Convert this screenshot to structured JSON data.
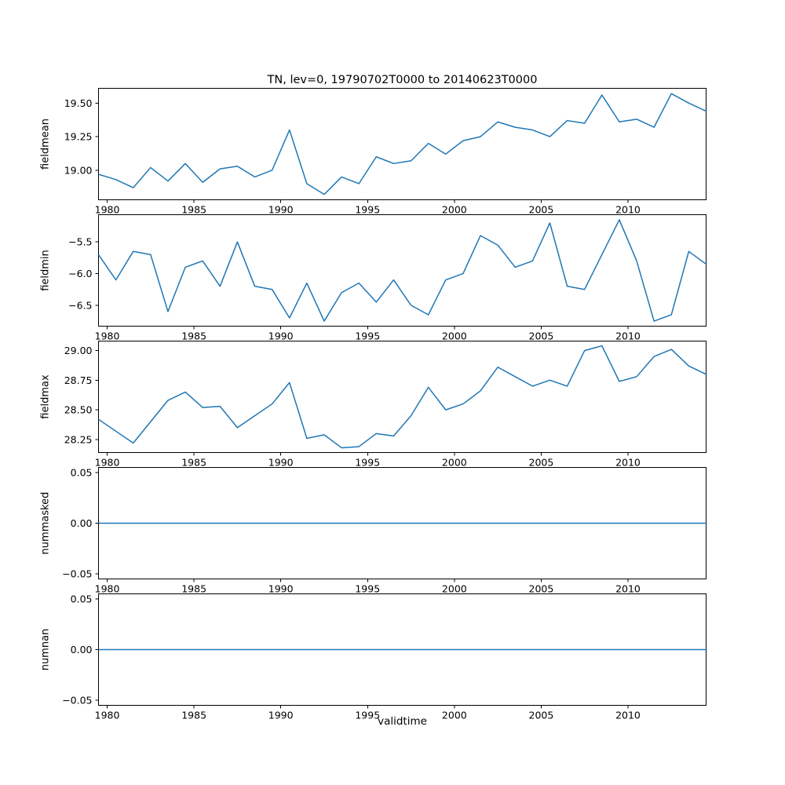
{
  "chart_data": {
    "type": "line",
    "title": "TN, lev=0, 19790702T0000 to 20140623T0000",
    "xlabel": "validtime",
    "line_color": "#1f77b4",
    "background_color": "#ffffff",
    "layout": "5 stacked subplots sharing the x axis, legend off, grid off",
    "x": [
      1979,
      1980,
      1981,
      1982,
      1983,
      1984,
      1985,
      1986,
      1987,
      1988,
      1989,
      1990,
      1991,
      1992,
      1993,
      1994,
      1995,
      1996,
      1997,
      1998,
      1999,
      2000,
      2001,
      2002,
      2003,
      2004,
      2005,
      2006,
      2007,
      2008,
      2009,
      2010,
      2011,
      2012,
      2013,
      2014
    ],
    "xlim": [
      1979.5,
      2014.5
    ],
    "xticks": [
      {
        "value": 1980,
        "label": "1980"
      },
      {
        "value": 1985,
        "label": "1985"
      },
      {
        "value": 1990,
        "label": "1990"
      },
      {
        "value": 1995,
        "label": "1995"
      },
      {
        "value": 2000,
        "label": "2000"
      },
      {
        "value": 2005,
        "label": "2005"
      },
      {
        "value": 2010,
        "label": "2010"
      }
    ],
    "series": [
      {
        "name": "fieldmean",
        "values": [
          18.97,
          18.93,
          18.87,
          19.02,
          18.92,
          19.05,
          18.91,
          19.01,
          19.03,
          18.95,
          19.0,
          19.3,
          18.9,
          18.82,
          18.95,
          18.9,
          19.1,
          19.05,
          19.07,
          19.2,
          19.12,
          19.22,
          19.25,
          19.36,
          19.32,
          19.3,
          19.25,
          19.37,
          19.35,
          19.56,
          19.36,
          19.38,
          19.32,
          19.57,
          19.5,
          19.44
        ],
        "ylim": [
          18.78,
          19.61
        ],
        "yticks": [
          {
            "value": 19.0,
            "label": "19.00"
          },
          {
            "value": 19.25,
            "label": "19.25"
          },
          {
            "value": 19.5,
            "label": "19.50"
          }
        ]
      },
      {
        "name": "fieldmin",
        "values": [
          -5.7,
          -6.1,
          -5.65,
          -5.7,
          -6.6,
          -5.9,
          -5.8,
          -6.2,
          -5.5,
          -6.2,
          -6.25,
          -6.7,
          -6.15,
          -6.75,
          -6.3,
          -6.15,
          -6.45,
          -6.1,
          -6.5,
          -6.65,
          -6.1,
          -6.0,
          -5.4,
          -5.55,
          -5.9,
          -5.8,
          -5.2,
          -6.2,
          -6.25,
          -5.7,
          -5.15,
          -5.8,
          -6.75,
          -6.65,
          -5.65,
          -5.85
        ],
        "ylim": [
          -6.83,
          -5.07
        ],
        "yticks": [
          {
            "value": -5.5,
            "label": "−5.5"
          },
          {
            "value": -6.0,
            "label": "−6.0"
          },
          {
            "value": -6.5,
            "label": "−6.5"
          }
        ]
      },
      {
        "name": "fieldmax",
        "values": [
          28.42,
          28.32,
          28.22,
          28.4,
          28.58,
          28.65,
          28.52,
          28.53,
          28.35,
          28.45,
          28.55,
          28.73,
          28.26,
          28.29,
          28.18,
          28.19,
          28.3,
          28.28,
          28.45,
          28.69,
          28.5,
          28.55,
          28.66,
          28.86,
          28.78,
          28.7,
          28.75,
          28.7,
          29.0,
          29.04,
          28.74,
          28.78,
          28.95,
          29.01,
          28.87,
          28.8
        ],
        "ylim": [
          28.14,
          29.08
        ],
        "yticks": [
          {
            "value": 28.25,
            "label": "28.25"
          },
          {
            "value": 28.5,
            "label": "28.50"
          },
          {
            "value": 28.75,
            "label": "28.75"
          },
          {
            "value": 29.0,
            "label": "29.00"
          }
        ]
      },
      {
        "name": "nummasked",
        "values": [
          0,
          0,
          0,
          0,
          0,
          0,
          0,
          0,
          0,
          0,
          0,
          0,
          0,
          0,
          0,
          0,
          0,
          0,
          0,
          0,
          0,
          0,
          0,
          0,
          0,
          0,
          0,
          0,
          0,
          0,
          0,
          0,
          0,
          0,
          0,
          0
        ],
        "ylim": [
          -0.055,
          0.055
        ],
        "yticks": [
          {
            "value": -0.05,
            "label": "−0.05"
          },
          {
            "value": 0.0,
            "label": "0.00"
          },
          {
            "value": 0.05,
            "label": "0.05"
          }
        ]
      },
      {
        "name": "numnan",
        "values": [
          0,
          0,
          0,
          0,
          0,
          0,
          0,
          0,
          0,
          0,
          0,
          0,
          0,
          0,
          0,
          0,
          0,
          0,
          0,
          0,
          0,
          0,
          0,
          0,
          0,
          0,
          0,
          0,
          0,
          0,
          0,
          0,
          0,
          0,
          0,
          0
        ],
        "ylim": [
          -0.055,
          0.055
        ],
        "yticks": [
          {
            "value": -0.05,
            "label": "−0.05"
          },
          {
            "value": 0.0,
            "label": "0.00"
          },
          {
            "value": 0.05,
            "label": "0.05"
          }
        ]
      }
    ]
  }
}
